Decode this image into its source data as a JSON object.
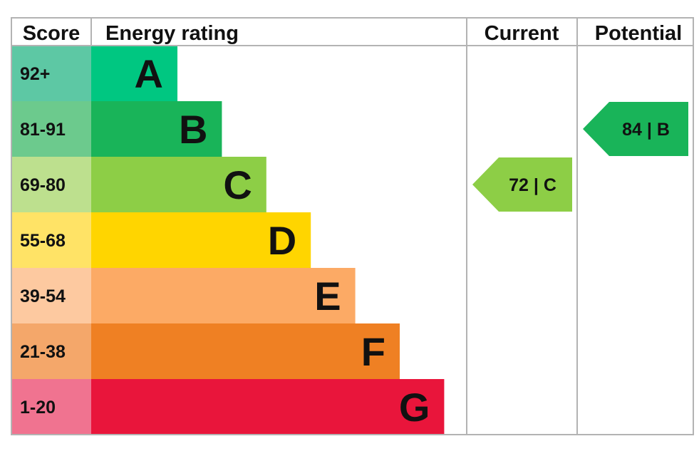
{
  "headers": {
    "score": "Score",
    "energy_rating": "Energy rating",
    "current": "Current",
    "potential": "Potential"
  },
  "chart_data": {
    "type": "bar",
    "title": "",
    "categories": [
      "A",
      "B",
      "C",
      "D",
      "E",
      "F",
      "G"
    ],
    "bands": [
      {
        "letter": "A",
        "range": "92+",
        "color": "#00c781",
        "score_color": "#5dc8a4"
      },
      {
        "letter": "B",
        "range": "81-91",
        "color": "#19b459",
        "score_color": "#6cca8d"
      },
      {
        "letter": "C",
        "range": "69-80",
        "color": "#8dce46",
        "score_color": "#bde08e"
      },
      {
        "letter": "D",
        "range": "55-68",
        "color": "#ffd500",
        "score_color": "#ffe366"
      },
      {
        "letter": "E",
        "range": "39-54",
        "color": "#fcaa65",
        "score_color": "#fdc9a0"
      },
      {
        "letter": "F",
        "range": "21-38",
        "color": "#ef8023",
        "score_color": "#f4a76a"
      },
      {
        "letter": "G",
        "range": "1-20",
        "color": "#e9153b",
        "score_color": "#f07390"
      }
    ],
    "current": {
      "value": 72,
      "band": "C",
      "label": "72 | C",
      "color": "#8dce46"
    },
    "potential": {
      "value": 84,
      "band": "B",
      "label": "84 | B",
      "color": "#19b459"
    }
  }
}
